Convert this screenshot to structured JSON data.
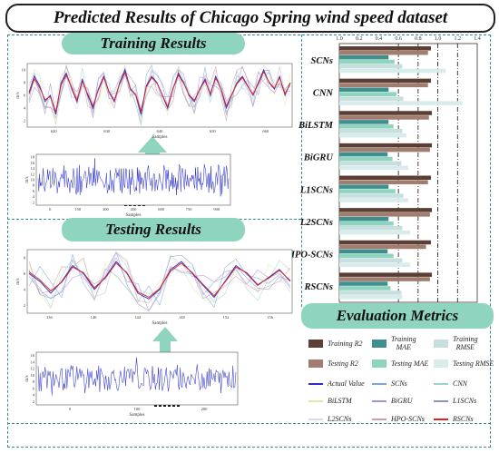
{
  "title": "Predicted Results of Chicago Spring wind speed dataset",
  "training_section": "Training Results",
  "testing_section": "Testing Results",
  "evaluation_section": "Evaluation Metrics",
  "axes": {
    "ylabel": "m/s",
    "xlabel": "Samples"
  },
  "train_zoom_ticks_x": [
    "620",
    "630",
    "640",
    "650",
    "660"
  ],
  "train_zoom_ticks_y": [
    "2",
    "4",
    "6",
    "8",
    "10"
  ],
  "train_full_ticks_x": [
    "0",
    "150",
    "300",
    "450",
    "600",
    "750",
    "900"
  ],
  "train_full_ticks_y": [
    "2",
    "4",
    "6",
    "8",
    "10",
    "12",
    "14",
    "16",
    "18"
  ],
  "test_zoom_ticks_x": [
    "136",
    "140",
    "144",
    "148",
    "152",
    "156"
  ],
  "test_zoom_ticks_y": [
    "2",
    "4",
    "6",
    "8"
  ],
  "test_full_ticks_x": [
    "0",
    "100",
    "200"
  ],
  "test_full_ticks_y": [
    "2",
    "4",
    "6",
    "8",
    "10",
    "12",
    "14",
    "16"
  ],
  "metric_ticks": [
    "1.0",
    "0.2",
    "0.4",
    "0.6",
    "0.8",
    "1.0",
    "1.2",
    "1.4"
  ],
  "colors": {
    "train_r2": "#5b3f35",
    "train_mae": "#3f8f8f",
    "train_rmse": "#c7dfdf",
    "test_r2": "#a07d6e",
    "test_mae": "#8fd4bf",
    "test_rmse": "#d8ecec",
    "actual": "#2c2cc8",
    "scns": "#7aa7d8",
    "cnn": "#9fd0d8",
    "bilstm": "#e4e6a8",
    "bigru": "#a98fd8",
    "l1scns": "#8a92c8",
    "l2scns": "#d8d8e8",
    "hposcns": "#d39aa8",
    "rscns": "#e02020",
    "accent": "#2f8f8f"
  },
  "chart_data": [
    {
      "type": "bar",
      "orientation": "horizontal",
      "categories": [
        "SCNs",
        "CNN",
        "BiLSTM",
        "BiGRU",
        "L1SCNs",
        "L2SCNs",
        "HPO-SCNs",
        "RSCNs"
      ],
      "xlim": [
        0,
        1.4
      ],
      "series": [
        {
          "name": "Training R2",
          "values": [
            0.93,
            0.93,
            0.94,
            0.94,
            0.93,
            0.94,
            0.93,
            0.94
          ]
        },
        {
          "name": "Testing R2",
          "values": [
            0.9,
            0.9,
            0.91,
            0.92,
            0.9,
            0.92,
            0.88,
            0.92
          ]
        },
        {
          "name": "Training MAE",
          "values": [
            0.5,
            0.5,
            0.5,
            0.49,
            0.5,
            0.5,
            0.49,
            0.49
          ]
        },
        {
          "name": "Testing MAE",
          "values": [
            0.56,
            0.58,
            0.55,
            0.54,
            0.57,
            0.55,
            0.55,
            0.52
          ]
        },
        {
          "name": "Training RMSE",
          "values": [
            0.64,
            0.65,
            0.64,
            0.63,
            0.65,
            0.64,
            0.64,
            0.63
          ]
        },
        {
          "name": "Testing RMSE",
          "values": [
            1.08,
            1.25,
            0.68,
            0.7,
            0.7,
            0.72,
            0.72,
            0.64
          ]
        }
      ]
    },
    {
      "type": "line",
      "xlabel": "Samples",
      "ylabel": "m/s",
      "xlim": [
        615,
        665
      ],
      "ylim": [
        1,
        11
      ],
      "series": [
        {
          "name": "Actual Value",
          "values": [
            6.5,
            9,
            7.5,
            5,
            6,
            3,
            8,
            9.5,
            7,
            5,
            8.5,
            6,
            4,
            7,
            9,
            6.5,
            5,
            8,
            10,
            7,
            6,
            3,
            7.5,
            9,
            8,
            6,
            4,
            7,
            9.5,
            8,
            6,
            5,
            7,
            8.5,
            6,
            9,
            7,
            4,
            6,
            8,
            9,
            7.5,
            6,
            8,
            10,
            8,
            7,
            9,
            6,
            8
          ]
        },
        {
          "name": "RSCNs",
          "values": [
            6.2,
            8.6,
            7.2,
            5.3,
            5.8,
            3.4,
            7.6,
            9.2,
            7.2,
            5.2,
            8.2,
            6.2,
            4.3,
            6.8,
            8.8,
            6.6,
            5.2,
            7.8,
            9.6,
            7.1,
            6.1,
            3.5,
            7.3,
            8.8,
            7.9,
            6.1,
            4.2,
            7.1,
            9.2,
            7.9,
            6.1,
            5.2,
            6.9,
            8.3,
            6.2,
            8.7,
            7.1,
            4.3,
            6.1,
            7.8,
            8.8,
            7.4,
            6.1,
            7.8,
            9.7,
            8.1,
            7.1,
            8.8,
            6.2,
            7.9
          ]
        }
      ]
    },
    {
      "type": "line",
      "xlabel": "Samples",
      "ylabel": "m/s",
      "xlim": [
        134,
        158
      ],
      "ylim": [
        1,
        9
      ],
      "series": [
        {
          "name": "Actual Value",
          "values": [
            6,
            5,
            3.5,
            5,
            7,
            6,
            4,
            5.5,
            7.5,
            6,
            3.5,
            2.8,
            4,
            6.5,
            7.5,
            6,
            4.5,
            3,
            5,
            7,
            6,
            4.5,
            5.5,
            6.5,
            5
          ]
        },
        {
          "name": "RSCNs",
          "values": [
            6.2,
            5.2,
            3.8,
            4.9,
            6.8,
            6.1,
            4.2,
            5.4,
            7.3,
            6.1,
            3.7,
            3,
            4.1,
            6.3,
            7.3,
            6.1,
            4.6,
            3.2,
            4.9,
            6.8,
            6.1,
            4.6,
            5.4,
            6.4,
            5.1
          ]
        }
      ]
    }
  ],
  "legend": [
    {
      "label": "Training R2",
      "kind": "box",
      "color": "train_r2"
    },
    {
      "label": "Training\nMAE",
      "kind": "box",
      "color": "train_mae"
    },
    {
      "label": "Training\nRMSE",
      "kind": "box",
      "color": "train_rmse"
    },
    {
      "label": "Testing R2",
      "kind": "box",
      "color": "test_r2"
    },
    {
      "label": "Testing MAE",
      "kind": "box",
      "color": "test_mae"
    },
    {
      "label": "Testing RMSE",
      "kind": "box",
      "color": "test_rmse"
    },
    {
      "label": "Actual Value",
      "kind": "line",
      "color": "actual"
    },
    {
      "label": "SCNs",
      "kind": "line",
      "color": "scns"
    },
    {
      "label": "CNN",
      "kind": "line",
      "color": "cnn"
    },
    {
      "label": "BiLSTM",
      "kind": "line",
      "color": "bilstm"
    },
    {
      "label": "BiGRU",
      "kind": "line",
      "color": "bigru"
    },
    {
      "label": "L1SCNs",
      "kind": "line",
      "color": "l1scns"
    },
    {
      "label": "L2SCNs",
      "kind": "line",
      "color": "l2scns"
    },
    {
      "label": "HPO-SCNs",
      "kind": "line",
      "color": "hposcns"
    },
    {
      "label": "RSCNs",
      "kind": "line",
      "color": "rscns"
    }
  ]
}
